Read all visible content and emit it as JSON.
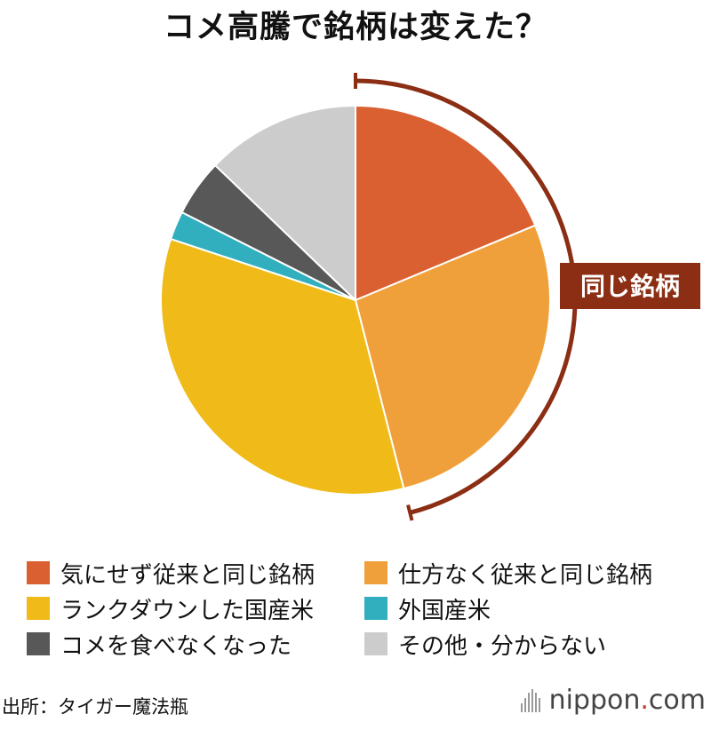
{
  "title": "コメ高騰で銘柄は変えた？",
  "bracket_label": "同じ銘柄",
  "colors": {
    "bracket": "#8b2e14",
    "slice_stroke": "#ffffff"
  },
  "chart_data": {
    "type": "pie",
    "title": "コメ高騰で銘柄は変えた？",
    "start_angle": "12 o'clock",
    "direction": "clockwise",
    "legend_position": "bottom",
    "slices": [
      {
        "label": "気にせず従来と同じ銘柄",
        "value": 19.0,
        "color": "#da5f31"
      },
      {
        "label": "仕方なく従来と同じ銘柄",
        "value": 27.7,
        "color": "#f0a03a"
      },
      {
        "label": "ランクダウンした国産米",
        "value": 34.6,
        "color": "#f0bb18"
      },
      {
        "label": "外国産米",
        "value": 2.4,
        "color": "#31afbe"
      },
      {
        "label": "コメを食べなくなった",
        "value": 4.8,
        "color": "#585858"
      },
      {
        "label": "その他・分からない",
        "value": 13.0,
        "color": "#cccccc"
      }
    ],
    "bracket": {
      "label": "同じ銘柄",
      "covers": [
        "気にせず従来と同じ銘柄",
        "仕方なく従来と同じ銘柄"
      ]
    }
  },
  "legend": [
    {
      "label": "気にせず従来と同じ銘柄",
      "color": "#da5f31"
    },
    {
      "label": "仕方なく従来と同じ銘柄",
      "color": "#f0a03a"
    },
    {
      "label": "ランクダウンした国産米",
      "color": "#f0bb18"
    },
    {
      "label": "外国産米",
      "color": "#31afbe"
    },
    {
      "label": "コメを食べなくなった",
      "color": "#585858"
    },
    {
      "label": "その他・分からない",
      "color": "#cccccc"
    }
  ],
  "source": "出所：タイガー魔法瓶",
  "brand": {
    "name": "nippon",
    "dot": ".",
    "tld": "com"
  }
}
